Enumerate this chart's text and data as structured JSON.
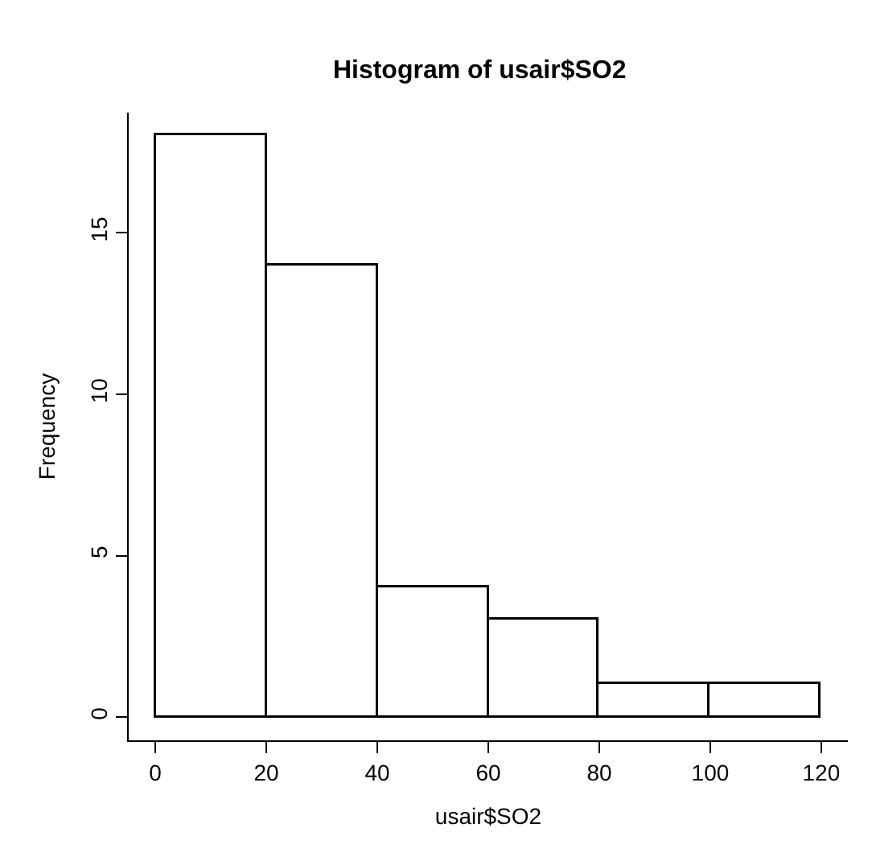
{
  "chart_data": {
    "type": "histogram",
    "title": "Histogram of usair$SO2",
    "xlabel": "usair$SO2",
    "ylabel": "Frequency",
    "bins": [
      0,
      20,
      40,
      60,
      80,
      100,
      120
    ],
    "values": [
      18,
      14,
      4,
      3,
      1,
      1
    ],
    "color": "#ffffff",
    "xlim": [
      -4.8,
      124.8
    ],
    "xticks": [
      0,
      20,
      40,
      60,
      80,
      100,
      120
    ],
    "ylim": [
      -0.72,
      18.72
    ],
    "yticks": [
      0,
      5,
      10,
      15
    ]
  }
}
